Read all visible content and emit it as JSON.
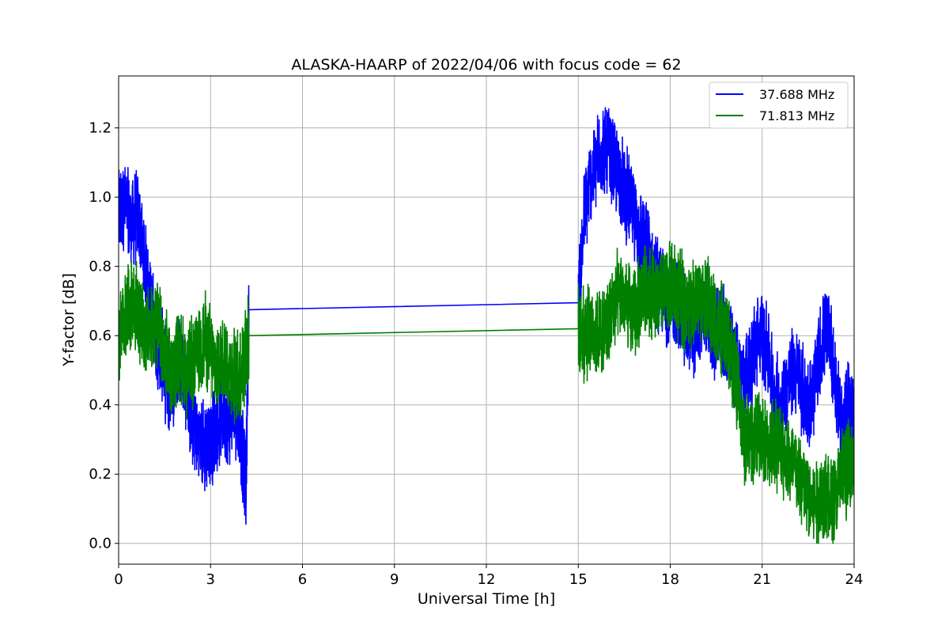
{
  "chart_data": {
    "type": "line",
    "title": "ALASKA-HAARP of 2022/04/06 with focus code = 62",
    "xlabel": "Universal Time [h]",
    "ylabel": "Y-factor [dB]",
    "xlim": [
      0,
      24
    ],
    "ylim": [
      -0.06,
      1.35
    ],
    "xticks": [
      0,
      3,
      6,
      9,
      12,
      15,
      18,
      21,
      24
    ],
    "xtick_labels": [
      "0",
      "3",
      "6",
      "9",
      "12",
      "15",
      "18",
      "21",
      "24"
    ],
    "yticks": [
      0.0,
      0.2,
      0.4,
      0.6,
      0.8,
      1.0,
      1.2
    ],
    "ytick_labels": [
      "0.0",
      "0.2",
      "0.4",
      "0.6",
      "0.8",
      "1.0",
      "1.2"
    ],
    "grid": true,
    "legend_position": "top-right",
    "series": [
      {
        "name": "37.688 MHz",
        "color": "#0000ff",
        "x": [
          0,
          0.2,
          0.4,
          0.6,
          0.8,
          1.0,
          1.2,
          1.4,
          1.6,
          1.8,
          2.0,
          2.2,
          2.4,
          2.6,
          2.8,
          3.0,
          3.2,
          3.4,
          3.6,
          3.8,
          4.0,
          4.15,
          4.25,
          15.0,
          15.2,
          15.4,
          15.6,
          15.8,
          16.0,
          16.2,
          16.4,
          16.6,
          16.8,
          17.0,
          17.2,
          17.4,
          17.6,
          17.8,
          18.0,
          18.2,
          18.4,
          18.6,
          18.8,
          19.0,
          19.2,
          19.4,
          19.6,
          19.8,
          20.0,
          20.2,
          20.4,
          20.6,
          20.8,
          21.0,
          21.2,
          21.4,
          21.6,
          21.8,
          22.0,
          22.2,
          22.4,
          22.6,
          22.8,
          23.0,
          23.2,
          23.4,
          23.6,
          23.8,
          24.0
        ],
        "y": [
          0.95,
          0.98,
          0.92,
          0.95,
          0.85,
          0.72,
          0.6,
          0.55,
          0.45,
          0.48,
          0.55,
          0.45,
          0.35,
          0.3,
          0.28,
          0.3,
          0.33,
          0.38,
          0.35,
          0.4,
          0.3,
          0.15,
          0.675,
          0.695,
          0.95,
          1.05,
          1.1,
          1.15,
          1.12,
          1.08,
          1.05,
          1.0,
          0.95,
          0.9,
          0.85,
          0.8,
          0.75,
          0.72,
          0.7,
          0.7,
          0.65,
          0.62,
          0.6,
          0.65,
          0.68,
          0.6,
          0.62,
          0.6,
          0.55,
          0.5,
          0.48,
          0.5,
          0.58,
          0.6,
          0.55,
          0.42,
          0.4,
          0.45,
          0.5,
          0.48,
          0.42,
          0.4,
          0.5,
          0.6,
          0.62,
          0.45,
          0.35,
          0.4,
          0.35
        ]
      },
      {
        "name": "71.813 MHz",
        "color": "#008000",
        "x": [
          0,
          0.2,
          0.4,
          0.6,
          0.8,
          1.0,
          1.2,
          1.4,
          1.6,
          1.8,
          2.0,
          2.2,
          2.4,
          2.6,
          2.8,
          3.0,
          3.2,
          3.4,
          3.6,
          3.8,
          4.0,
          4.15,
          4.25,
          15.0,
          15.2,
          15.4,
          15.6,
          15.8,
          16.0,
          16.2,
          16.4,
          16.6,
          16.8,
          17.0,
          17.2,
          17.4,
          17.6,
          17.8,
          18.0,
          18.2,
          18.4,
          18.6,
          18.8,
          19.0,
          19.2,
          19.4,
          19.6,
          19.8,
          20.0,
          20.2,
          20.4,
          20.6,
          20.8,
          21.0,
          21.2,
          21.4,
          21.6,
          21.8,
          22.0,
          22.2,
          22.4,
          22.6,
          22.8,
          23.0,
          23.2,
          23.4,
          23.6,
          23.8,
          24.0
        ],
        "y": [
          0.58,
          0.65,
          0.7,
          0.68,
          0.62,
          0.6,
          0.65,
          0.58,
          0.52,
          0.5,
          0.55,
          0.5,
          0.52,
          0.55,
          0.6,
          0.55,
          0.5,
          0.55,
          0.5,
          0.48,
          0.5,
          0.55,
          0.6,
          0.62,
          0.6,
          0.62,
          0.6,
          0.62,
          0.65,
          0.7,
          0.72,
          0.68,
          0.65,
          0.7,
          0.75,
          0.72,
          0.7,
          0.72,
          0.75,
          0.72,
          0.7,
          0.68,
          0.7,
          0.72,
          0.7,
          0.65,
          0.62,
          0.6,
          0.55,
          0.45,
          0.3,
          0.3,
          0.32,
          0.3,
          0.28,
          0.3,
          0.28,
          0.25,
          0.22,
          0.2,
          0.15,
          0.12,
          0.12,
          0.15,
          0.12,
          0.12,
          0.2,
          0.22,
          0.25
        ]
      }
    ]
  }
}
